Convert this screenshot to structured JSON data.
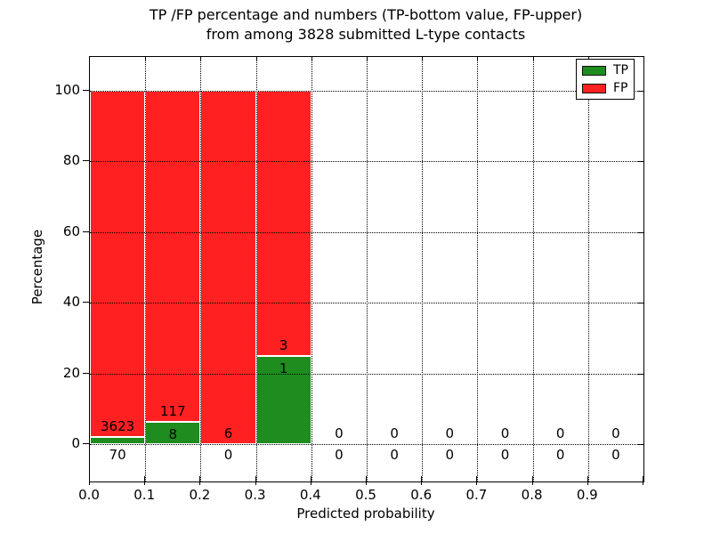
{
  "title": {
    "line1": "TP /FP percentage and numbers (TP-bottom value, FP-upper)",
    "line2": "from among 3828 submitted L-type contacts"
  },
  "colors": {
    "tp_green": "#1e8c1e",
    "fp_red": "#ff2121",
    "grid": "#000000",
    "background": "#ffffff",
    "text": "#000000"
  },
  "chart_data": {
    "type": "bar",
    "stacked": true,
    "title": "TP /FP percentage and numbers (TP-bottom value, FP-upper) from among 3828 submitted L-type contacts",
    "xlabel": "Predicted probability",
    "ylabel": "Percentage",
    "total_submitted": 3828,
    "xlim": [
      0.0,
      1.0
    ],
    "ylim": [
      -10.5,
      109.5
    ],
    "x_ticks": [
      "0.0",
      "0.1",
      "0.2",
      "0.3",
      "0.4",
      "0.5",
      "0.6",
      "0.7",
      "0.8",
      "0.9"
    ],
    "y_ticks": [
      0,
      20,
      40,
      60,
      80,
      100
    ],
    "grid": "dotted",
    "annotation_note": "TP count printed below/inside green, FP count printed above green top",
    "legend": {
      "position": "upper right",
      "entries": [
        {
          "label": "TP",
          "color": "#1e8c1e"
        },
        {
          "label": "FP",
          "color": "#ff2121"
        }
      ]
    },
    "bins": [
      {
        "range": [
          0.0,
          0.1
        ],
        "tp_count": 70,
        "fp_count": 3623,
        "tp_pct": 1.9,
        "fp_pct": 98.1
      },
      {
        "range": [
          0.1,
          0.2
        ],
        "tp_count": 8,
        "fp_count": 117,
        "tp_pct": 6.4,
        "fp_pct": 93.6
      },
      {
        "range": [
          0.2,
          0.3
        ],
        "tp_count": 0,
        "fp_count": 6,
        "tp_pct": 0.0,
        "fp_pct": 100.0
      },
      {
        "range": [
          0.3,
          0.4
        ],
        "tp_count": 1,
        "fp_count": 3,
        "tp_pct": 25.0,
        "fp_pct": 75.0
      },
      {
        "range": [
          0.4,
          0.5
        ],
        "tp_count": 0,
        "fp_count": 0,
        "tp_pct": 0.0,
        "fp_pct": 0.0
      },
      {
        "range": [
          0.5,
          0.6
        ],
        "tp_count": 0,
        "fp_count": 0,
        "tp_pct": 0.0,
        "fp_pct": 0.0
      },
      {
        "range": [
          0.6,
          0.7
        ],
        "tp_count": 0,
        "fp_count": 0,
        "tp_pct": 0.0,
        "fp_pct": 0.0
      },
      {
        "range": [
          0.7,
          0.8
        ],
        "tp_count": 0,
        "fp_count": 0,
        "tp_pct": 0.0,
        "fp_pct": 0.0
      },
      {
        "range": [
          0.8,
          0.9
        ],
        "tp_count": 0,
        "fp_count": 0,
        "tp_pct": 0.0,
        "fp_pct": 0.0
      },
      {
        "range": [
          0.9,
          1.0
        ],
        "tp_count": 0,
        "fp_count": 0,
        "tp_pct": 0.0,
        "fp_pct": 0.0
      }
    ]
  }
}
